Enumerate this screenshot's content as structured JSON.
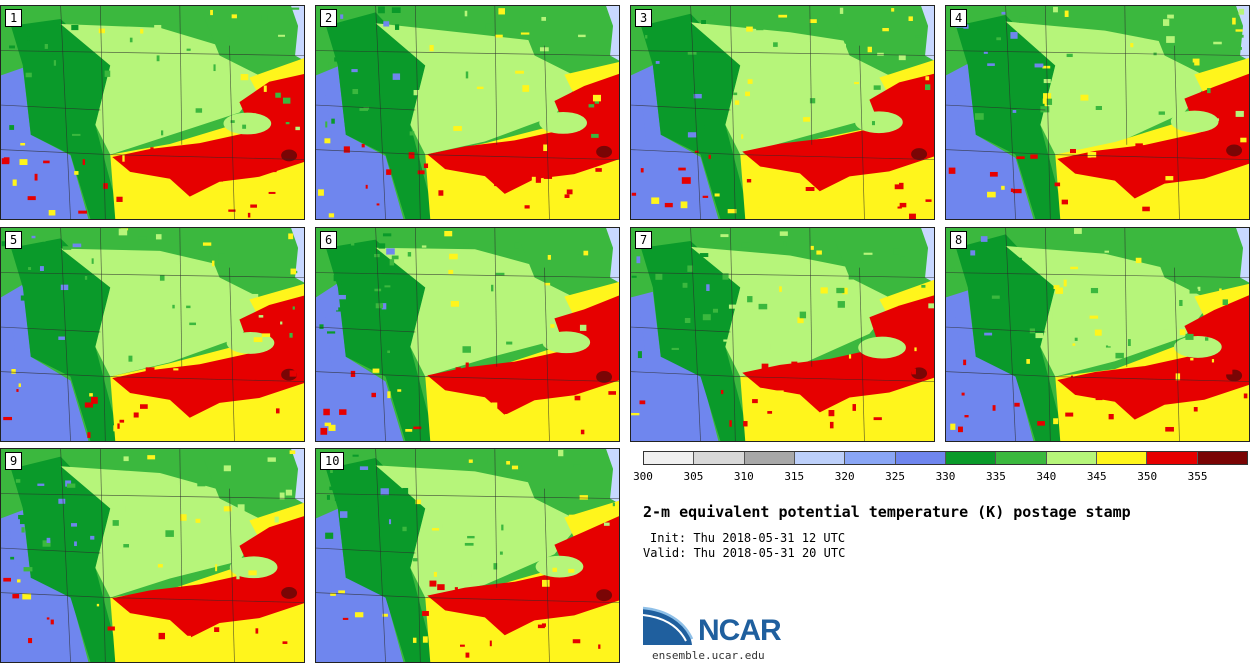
{
  "panels": [
    {
      "label": "1"
    },
    {
      "label": "2"
    },
    {
      "label": "3"
    },
    {
      "label": "4"
    },
    {
      "label": "5"
    },
    {
      "label": "6"
    },
    {
      "label": "7"
    },
    {
      "label": "8"
    },
    {
      "label": "9"
    },
    {
      "label": "10"
    }
  ],
  "legend": {
    "colors": [
      "#f0f0f0",
      "#d8d8d8",
      "#a8a8a8",
      "#bdd0fa",
      "#8aa6f5",
      "#6f86ee",
      "#0a9a2a",
      "#3bb83e",
      "#b6f57a",
      "#fff51c",
      "#e60000",
      "#7a0505"
    ],
    "ticks": [
      "300",
      "305",
      "310",
      "315",
      "320",
      "325",
      "330",
      "335",
      "340",
      "345",
      "350",
      "355"
    ]
  },
  "title": "2-m equivalent potential temperature (K) postage stamp",
  "init": "Init: Thu 2018-05-31 12 UTC",
  "valid": "Valid: Thu 2018-05-31 20 UTC",
  "logo": {
    "text": "NCAR",
    "url": "ensemble.ucar.edu",
    "color": "#1f5f9e"
  }
}
